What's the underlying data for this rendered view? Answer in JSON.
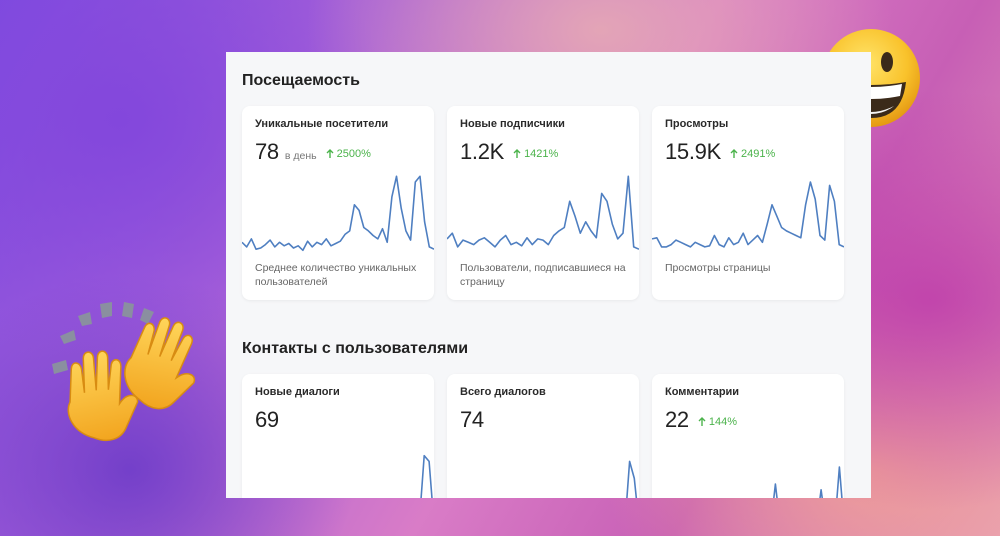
{
  "sections": {
    "attendance": {
      "title": "Посещаемость",
      "cards": [
        {
          "title": "Уникальные посетители",
          "value": "78",
          "unit": "в день",
          "change": "2500%",
          "description": "Среднее количество уникальных пользователей"
        },
        {
          "title": "Новые подписчики",
          "value": "1.2K",
          "unit": "",
          "change": "1421%",
          "description": "Пользователи, подписавшиеся на страницу"
        },
        {
          "title": "Просмотры",
          "value": "15.9K",
          "unit": "",
          "change": "2491%",
          "description": "Просмотры страницы"
        }
      ]
    },
    "contacts": {
      "title": "Контакты с пользователями",
      "cards": [
        {
          "title": "Новые диалоги",
          "value": "69",
          "unit": "",
          "change": ""
        },
        {
          "title": "Всего диалогов",
          "value": "74",
          "unit": "",
          "change": ""
        },
        {
          "title": "Комментарии",
          "value": "22",
          "unit": "",
          "change": "144%"
        }
      ]
    }
  },
  "chart_data": [
    {
      "type": "line",
      "name": "Уникальные посетители",
      "values": [
        12,
        8,
        15,
        6,
        7,
        10,
        14,
        8,
        12,
        9,
        11,
        7,
        9,
        5,
        13,
        8,
        12,
        10,
        15,
        9,
        11,
        13,
        19,
        22,
        45,
        40,
        25,
        22,
        18,
        15,
        24,
        12,
        52,
        70,
        42,
        22,
        14,
        65,
        70,
        30,
        8,
        6
      ]
    },
    {
      "type": "line",
      "name": "Новые подписчики",
      "values": [
        15,
        20,
        8,
        14,
        12,
        10,
        14,
        16,
        12,
        8,
        14,
        18,
        10,
        12,
        9,
        16,
        10,
        15,
        14,
        10,
        18,
        22,
        25,
        48,
        35,
        20,
        30,
        22,
        16,
        55,
        48,
        28,
        15,
        20,
        70,
        8,
        6
      ]
    },
    {
      "type": "line",
      "name": "Просмотры",
      "values": [
        15,
        16,
        8,
        8,
        10,
        14,
        12,
        10,
        8,
        12,
        10,
        8,
        9,
        18,
        10,
        8,
        16,
        10,
        12,
        20,
        10,
        14,
        18,
        12,
        28,
        45,
        35,
        25,
        22,
        20,
        18,
        16,
        45,
        65,
        50,
        18,
        14,
        62,
        48,
        10,
        8
      ]
    },
    {
      "type": "line",
      "name": "Новые диалоги",
      "values": [
        0,
        0,
        0,
        0,
        0,
        0,
        0,
        0,
        0,
        0,
        0,
        0,
        0,
        0,
        0,
        0,
        0,
        0,
        0,
        0,
        0,
        0,
        0,
        0,
        0,
        0,
        0,
        0,
        0,
        0,
        0,
        0,
        0,
        0,
        0,
        0,
        0,
        60,
        55,
        0
      ]
    },
    {
      "type": "line",
      "name": "Всего диалогов",
      "values": [
        0,
        0,
        0,
        0,
        0,
        0,
        0,
        0,
        0,
        0,
        0,
        0,
        0,
        0,
        0,
        0,
        0,
        0,
        0,
        0,
        0,
        0,
        0,
        0,
        0,
        0,
        0,
        0,
        0,
        0,
        0,
        0,
        0,
        0,
        0,
        0,
        0,
        0,
        0,
        55,
        40,
        0
      ]
    },
    {
      "type": "line",
      "name": "Комментарии",
      "values": [
        0,
        0,
        0,
        0,
        0,
        0,
        0,
        0,
        0,
        0,
        0,
        0,
        0,
        0,
        0,
        0,
        0,
        0,
        0,
        0,
        0,
        0,
        0,
        0,
        0,
        0,
        0,
        35,
        0,
        0,
        0,
        0,
        0,
        0,
        0,
        0,
        0,
        30,
        0,
        0,
        0,
        50,
        0
      ]
    }
  ],
  "colors": {
    "line": "#4f7fc1",
    "positive": "#4bb34b",
    "card_bg": "#ffffff",
    "panel_bg": "#f6f7f9"
  },
  "icons": {
    "arrow": "arrow-up-icon",
    "emoji_face": "grinning-face-icon",
    "emoji_hands": "raising-hands-icon"
  }
}
